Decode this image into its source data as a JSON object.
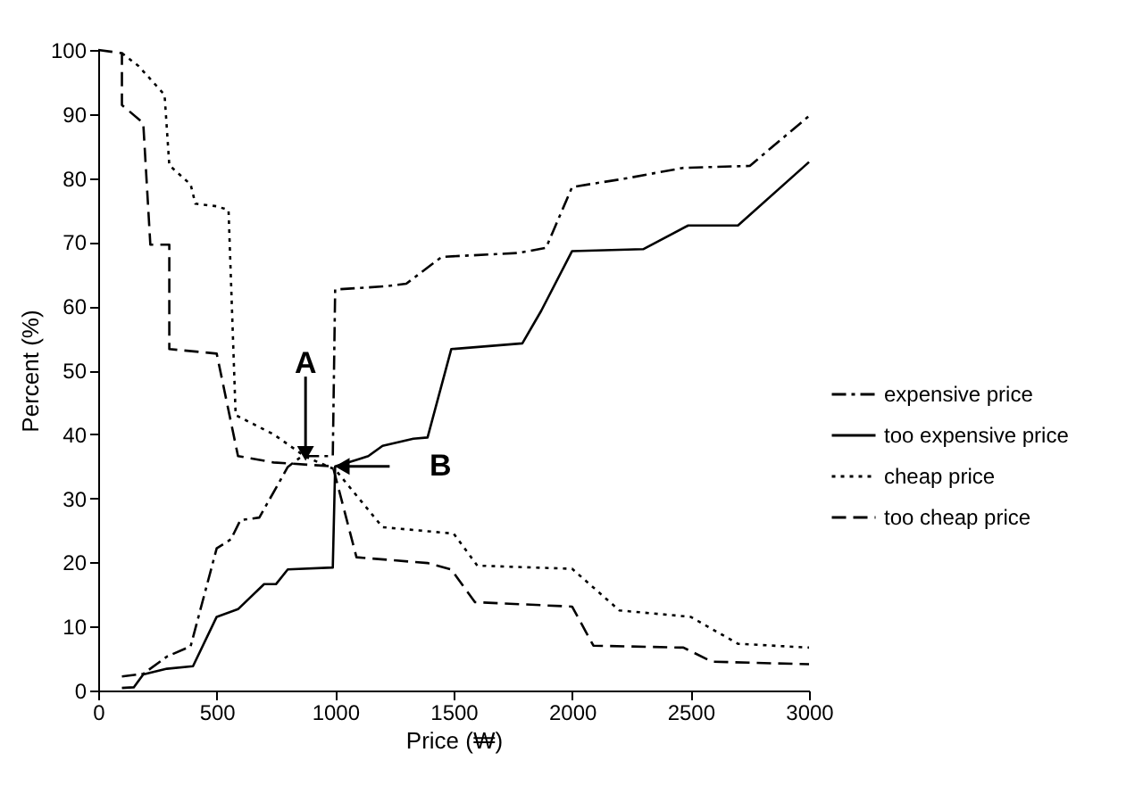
{
  "chart_data": {
    "type": "line",
    "xlabel": "Price (₩)",
    "ylabel": "Percent (%)",
    "xlim": [
      0,
      3000
    ],
    "xticks": [
      0,
      500,
      1000,
      1500,
      2000,
      2500,
      3000
    ],
    "ylim": [
      0,
      100
    ],
    "yticks": [
      0,
      10,
      20,
      30,
      40,
      50,
      60,
      70,
      80,
      90,
      100
    ],
    "grid": false,
    "legend": "right",
    "marker": "none",
    "series": [
      {
        "name": "expensive price",
        "color": "#000000",
        "line_style": "dashdot",
        "x": [
          100,
          190,
          290,
          390,
          500,
          560,
          600,
          680,
          800,
          860,
          990,
          1000,
          1210,
          1300,
          1450,
          1770,
          1890,
          2000,
          2220,
          2470,
          2750,
          3000
        ],
        "values": [
          2.2,
          2.6,
          5.3,
          6.9,
          22.2,
          23.6,
          26.6,
          27,
          34.9,
          36.6,
          36.6,
          62.6,
          63.1,
          63.5,
          67.7,
          68.3,
          69.1,
          78.6,
          79.9,
          81.6,
          81.9,
          89.7
        ]
      },
      {
        "name": "too expensive price",
        "color": "#000000",
        "line_style": "solid",
        "x": [
          100,
          150,
          190,
          290,
          400,
          500,
          590,
          700,
          750,
          800,
          990,
          1000,
          1090,
          1140,
          1200,
          1330,
          1390,
          1490,
          1790,
          1870,
          2000,
          2300,
          2490,
          2700,
          3000
        ],
        "values": [
          0.4,
          0.5,
          2.5,
          3.4,
          3.8,
          11.5,
          12.7,
          16.6,
          16.6,
          18.9,
          19.2,
          35,
          36,
          36.6,
          38.2,
          39.3,
          39.5,
          53.3,
          54.2,
          59.3,
          68.6,
          68.9,
          72.6,
          72.6,
          82.5
        ]
      },
      {
        "name": "cheap price",
        "color": "#000000",
        "line_style": "dotted",
        "x": [
          100,
          170,
          280,
          300,
          390,
          410,
          500,
          550,
          580,
          740,
          875,
          1000,
          1200,
          1500,
          1600,
          2000,
          2200,
          2500,
          2700,
          3000
        ],
        "values": [
          99.5,
          97.5,
          93,
          82,
          79,
          76,
          75.6,
          75,
          43,
          40,
          36.5,
          34.5,
          25.5,
          24.5,
          19.5,
          19,
          12.5,
          11.5,
          7.3,
          6.7
        ]
      },
      {
        "name": "too cheap price",
        "color": "#000000",
        "line_style": "dashed",
        "x": [
          0,
          100,
          100,
          190,
          220,
          300,
          300,
          500,
          590,
          740,
          990,
          1090,
          1390,
          1490,
          1590,
          2000,
          2090,
          2470,
          2590,
          3000
        ],
        "values": [
          100,
          99.5,
          91.4,
          88.6,
          69.6,
          69.6,
          53.3,
          52.6,
          36.6,
          35.6,
          35,
          20.8,
          19.9,
          18.9,
          13.8,
          13.1,
          7,
          6.7,
          4.5,
          4.1
        ]
      }
    ],
    "annotations": [
      {
        "text": "A",
        "x": 875,
        "y": 37
      },
      {
        "text": "B",
        "x": 1030,
        "y": 35
      }
    ]
  }
}
